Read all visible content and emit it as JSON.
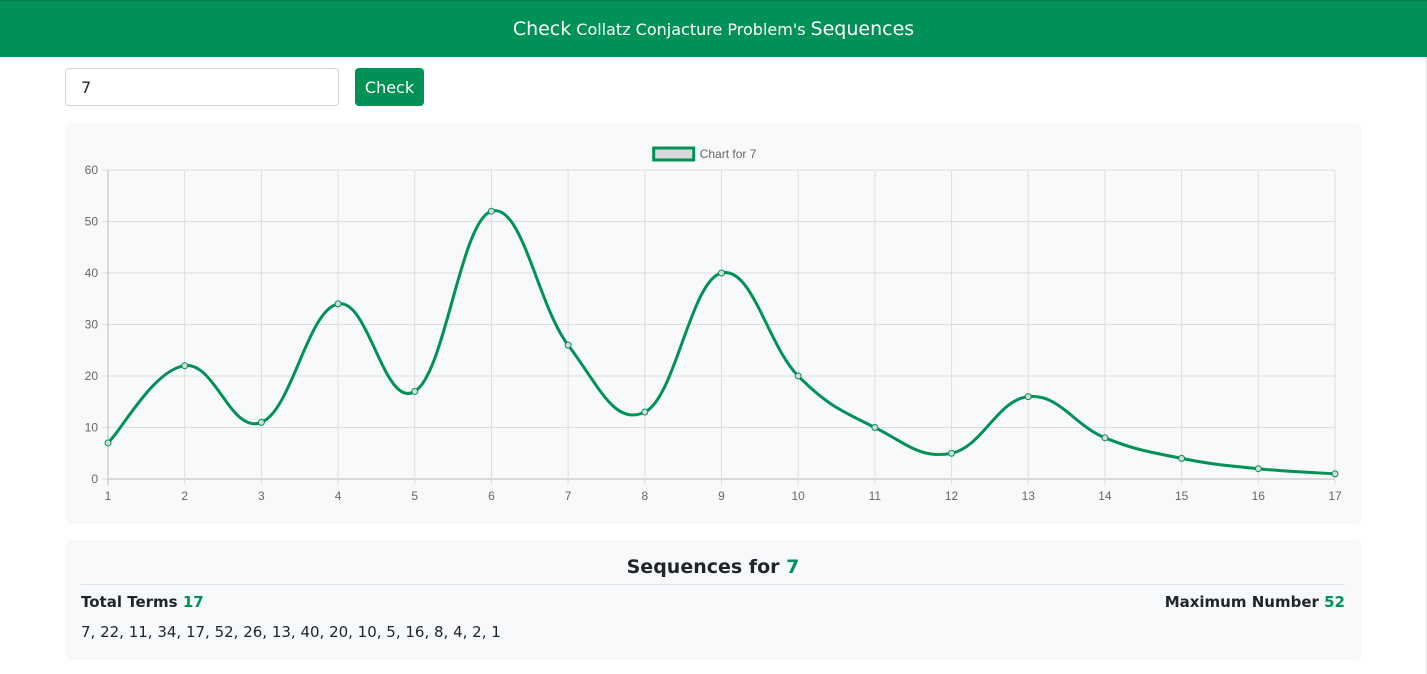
{
  "header": {
    "title_part1": "Check",
    "title_part2": "Collatz Conjacture Problem's",
    "title_part3": "Sequences"
  },
  "search": {
    "value": "7",
    "button_label": "Check"
  },
  "colors": {
    "accent": "#009157",
    "legend_fill": "#d7dad8",
    "grid": "#dddddd",
    "tick_text": "#666666"
  },
  "chart_data": {
    "type": "line",
    "legend": [
      "Chart for 7"
    ],
    "legend_position": "top",
    "grid": true,
    "x": [
      1,
      2,
      3,
      4,
      5,
      6,
      7,
      8,
      9,
      10,
      11,
      12,
      13,
      14,
      15,
      16,
      17
    ],
    "y_ticks": [
      0,
      10,
      20,
      30,
      40,
      50,
      60
    ],
    "ylim": [
      0,
      60
    ],
    "series": [
      {
        "name": "Chart for 7",
        "values": [
          7,
          22,
          11,
          34,
          17,
          52,
          26,
          13,
          40,
          20,
          10,
          5,
          16,
          8,
          4,
          2,
          1
        ]
      }
    ]
  },
  "result": {
    "title_prefix": "Sequences for",
    "title_value": "7",
    "total_terms_label": "Total Terms",
    "total_terms_value": "17",
    "max_label": "Maximum Number",
    "max_value": "52",
    "sequence_text": "7, 22, 11, 34, 17, 52, 26, 13, 40, 20, 10, 5, 16, 8, 4, 2, 1"
  }
}
